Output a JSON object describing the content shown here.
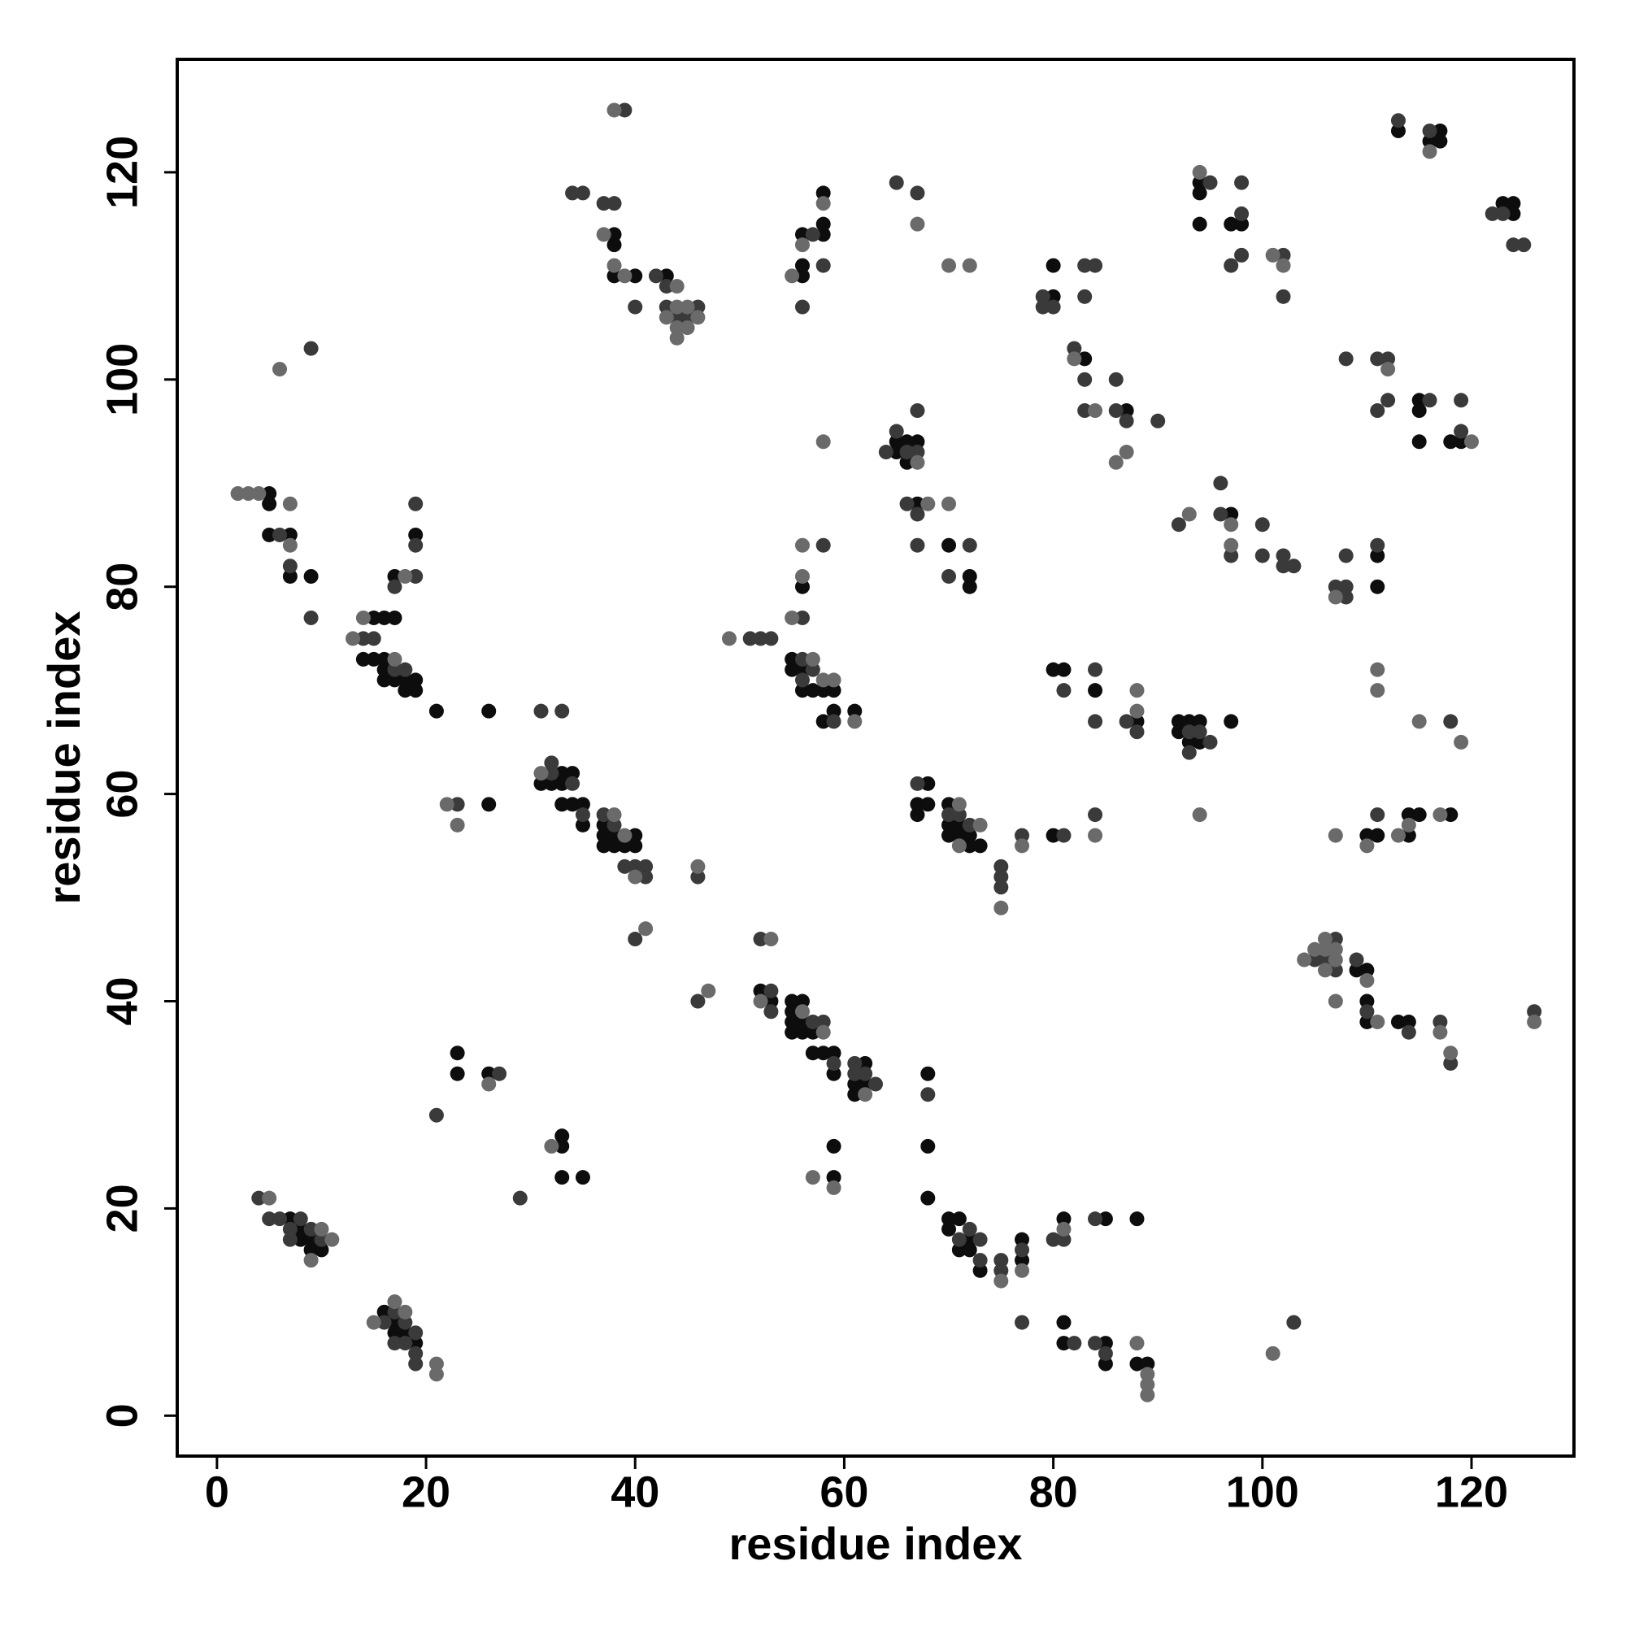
{
  "chart_data": {
    "type": "scatter",
    "xlabel": "residue index",
    "ylabel": "residue index",
    "xlim": [
      -3.8,
      129.8
    ],
    "ylim": [
      -3.9,
      130.9
    ],
    "xticks": [
      0,
      20,
      40,
      60,
      80,
      100,
      120
    ],
    "yticks": [
      0,
      20,
      40,
      60,
      80,
      100,
      120
    ],
    "grid": false,
    "series": [
      {
        "color": "#0d0d0d",
        "x": [
          7,
          8,
          8,
          9,
          9,
          10,
          16,
          17,
          17,
          18,
          19,
          23,
          23,
          26,
          33,
          33,
          33,
          35,
          26,
          21,
          26,
          31,
          32,
          33,
          33,
          33,
          34,
          34,
          35,
          35,
          37,
          37,
          37,
          38,
          38,
          39,
          40,
          40,
          38,
          38,
          38,
          40,
          43,
          5,
          5,
          5,
          7,
          7,
          9,
          15,
          16,
          17,
          14,
          15,
          16,
          16,
          16,
          17,
          18,
          18,
          19,
          19,
          17,
          19,
          55,
          55,
          56,
          56,
          56,
          57,
          58,
          59,
          58,
          59,
          61,
          56,
          56,
          56,
          58,
          58,
          58,
          65,
          65,
          66,
          66,
          67,
          67,
          70,
          72,
          72,
          68,
          67,
          67,
          68,
          70,
          70,
          70,
          71,
          71,
          72,
          72,
          73,
          80,
          80,
          81,
          84,
          88,
          92,
          92,
          93,
          93,
          94,
          94,
          97,
          52,
          53,
          55,
          55,
          55,
          55,
          56,
          56,
          56,
          57,
          57,
          58,
          59,
          59,
          61,
          61,
          62,
          62,
          59,
          59,
          68,
          68,
          68,
          70,
          70,
          71,
          71,
          72,
          72,
          73,
          77,
          77,
          81,
          85,
          88,
          81,
          81,
          85,
          85,
          88,
          89,
          80,
          80,
          83,
          87,
          97,
          94,
          94,
          94,
          97,
          98,
          111,
          111,
          115,
          115,
          115,
          118,
          119,
          113,
          116,
          117,
          117,
          123,
          124,
          124,
          110,
          111,
          114,
          114,
          115,
          118,
          109,
          110,
          110,
          110,
          113,
          114
        ],
        "values": [
          19,
          18,
          17,
          17,
          16,
          16,
          10,
          9,
          8,
          8,
          7,
          35,
          33,
          33,
          27,
          26,
          23,
          23,
          59,
          68,
          68,
          61,
          61,
          62,
          61,
          59,
          62,
          59,
          59,
          57,
          57,
          56,
          55,
          56,
          55,
          55,
          56,
          55,
          114,
          113,
          110,
          110,
          110,
          89,
          88,
          85,
          85,
          81,
          81,
          77,
          77,
          77,
          73,
          73,
          73,
          72,
          71,
          71,
          71,
          70,
          71,
          70,
          81,
          85,
          73,
          72,
          80,
          72,
          70,
          70,
          70,
          70,
          67,
          68,
          68,
          114,
          111,
          110,
          118,
          115,
          114,
          94,
          93,
          94,
          92,
          94,
          88,
          84,
          81,
          80,
          61,
          59,
          58,
          59,
          59,
          57,
          56,
          57,
          56,
          56,
          55,
          55,
          56,
          72,
          72,
          70,
          67,
          67,
          66,
          67,
          65,
          67,
          65,
          67,
          41,
          40,
          40,
          39,
          38,
          37,
          40,
          38,
          37,
          37,
          35,
          35,
          35,
          33,
          32,
          31,
          34,
          32,
          26,
          23,
          33,
          26,
          21,
          19,
          18,
          19,
          16,
          17,
          16,
          14,
          17,
          15,
          19,
          19,
          19,
          9,
          7,
          7,
          5,
          5,
          5,
          111,
          108,
          102,
          97,
          87,
          119,
          118,
          115,
          115,
          115,
          83,
          80,
          98,
          97,
          94,
          94,
          94,
          124,
          123,
          124,
          123,
          117,
          117,
          116,
          56,
          56,
          58,
          56,
          58,
          58,
          43,
          43,
          40,
          38,
          38,
          38
        ]
      },
      {
        "color": "#3a3a3a",
        "x": [
          4,
          5,
          6,
          7,
          7,
          8,
          9,
          10,
          16,
          17,
          17,
          18,
          18,
          19,
          19,
          19,
          21,
          27,
          29,
          23,
          31,
          33,
          32,
          32,
          34,
          35,
          37,
          38,
          39,
          40,
          41,
          41,
          40,
          46,
          46,
          39,
          34,
          35,
          37,
          38,
          40,
          42,
          43,
          43,
          44,
          45,
          46,
          6,
          7,
          9,
          9,
          14,
          15,
          17,
          18,
          17,
          19,
          19,
          19,
          51,
          52,
          53,
          56,
          58,
          56,
          56,
          57,
          59,
          57,
          56,
          58,
          64,
          65,
          66,
          67,
          67,
          66,
          67,
          67,
          65,
          67,
          70,
          72,
          67,
          70,
          71,
          72,
          75,
          75,
          75,
          77,
          81,
          81,
          84,
          84,
          84,
          87,
          88,
          93,
          93,
          94,
          95,
          52,
          53,
          53,
          57,
          58,
          59,
          61,
          61,
          62,
          63,
          68,
          71,
          72,
          73,
          73,
          75,
          75,
          77,
          77,
          80,
          81,
          84,
          82,
          84,
          85,
          103,
          79,
          79,
          80,
          83,
          83,
          84,
          82,
          83,
          83,
          86,
          86,
          87,
          90,
          92,
          96,
          96,
          97,
          100,
          100,
          102,
          102,
          103,
          95,
          98,
          98,
          97,
          98,
          102,
          102,
          107,
          108,
          108,
          108,
          111,
          108,
          111,
          111,
          112,
          112,
          116,
          119,
          119,
          113,
          116,
          122,
          123,
          124,
          125,
          118,
          111,
          105,
          106,
          107,
          107,
          109,
          110,
          114,
          117,
          118,
          126
        ],
        "values": [
          21,
          19,
          19,
          18,
          17,
          19,
          18,
          17,
          9,
          10,
          7,
          9,
          7,
          8,
          6,
          5,
          29,
          33,
          21,
          59,
          68,
          68,
          63,
          62,
          61,
          58,
          58,
          57,
          53,
          53,
          53,
          52,
          46,
          52,
          40,
          126,
          118,
          118,
          117,
          117,
          107,
          110,
          109,
          107,
          106,
          106,
          107,
          85,
          82,
          77,
          103,
          75,
          75,
          72,
          72,
          80,
          81,
          84,
          88,
          75,
          75,
          75,
          77,
          84,
          73,
          71,
          72,
          67,
          114,
          107,
          111,
          93,
          95,
          93,
          93,
          97,
          88,
          87,
          84,
          119,
          118,
          81,
          84,
          61,
          58,
          58,
          57,
          53,
          52,
          51,
          56,
          56,
          70,
          72,
          67,
          58,
          67,
          66,
          66,
          64,
          66,
          65,
          46,
          41,
          39,
          38,
          38,
          34,
          34,
          33,
          33,
          32,
          31,
          17,
          18,
          17,
          15,
          15,
          14,
          16,
          9,
          17,
          17,
          19,
          7,
          7,
          6,
          9,
          108,
          107,
          107,
          111,
          108,
          111,
          103,
          100,
          97,
          100,
          97,
          96,
          96,
          86,
          90,
          87,
          83,
          86,
          83,
          83,
          82,
          82,
          119,
          116,
          119,
          111,
          112,
          112,
          108,
          80,
          80,
          79,
          83,
          84,
          102,
          102,
          97,
          102,
          98,
          98,
          98,
          95,
          125,
          124,
          116,
          116,
          113,
          113,
          67,
          58,
          44,
          44,
          46,
          43,
          44,
          39,
          37,
          38,
          34,
          39
        ]
      },
      {
        "color": "#6a6a6a",
        "x": [
          5,
          9,
          10,
          11,
          15,
          17,
          18,
          21,
          21,
          26,
          32,
          22,
          23,
          31,
          38,
          39,
          40,
          41,
          46,
          47,
          38,
          37,
          38,
          39,
          44,
          43,
          44,
          44,
          45,
          45,
          46,
          44,
          2,
          3,
          4,
          7,
          7,
          6,
          13,
          14,
          17,
          18,
          49,
          55,
          56,
          56,
          57,
          58,
          59,
          61,
          56,
          55,
          58,
          58,
          67,
          68,
          67,
          70,
          72,
          70,
          71,
          71,
          73,
          75,
          77,
          84,
          88,
          88,
          94,
          53,
          52,
          56,
          58,
          62,
          57,
          59,
          75,
          77,
          81,
          88,
          89,
          89,
          89,
          101,
          82,
          84,
          86,
          87,
          93,
          97,
          97,
          94,
          101,
          102,
          107,
          112,
          120,
          116,
          111,
          111,
          115,
          119,
          107,
          110,
          113,
          114,
          117,
          104,
          105,
          106,
          106,
          106,
          107,
          107,
          107,
          110,
          111,
          117,
          118,
          126
        ],
        "values": [
          21,
          15,
          18,
          17,
          9,
          11,
          10,
          5,
          4,
          32,
          26,
          59,
          57,
          62,
          58,
          56,
          52,
          47,
          53,
          41,
          126,
          114,
          111,
          110,
          109,
          106,
          107,
          104,
          107,
          105,
          106,
          105,
          89,
          89,
          89,
          84,
          88,
          101,
          75,
          77,
          73,
          81,
          75,
          77,
          81,
          84,
          73,
          71,
          71,
          67,
          113,
          110,
          117,
          94,
          92,
          88,
          115,
          111,
          111,
          88,
          59,
          55,
          57,
          49,
          55,
          56,
          68,
          70,
          58,
          46,
          40,
          39,
          37,
          31,
          23,
          22,
          13,
          14,
          18,
          7,
          4,
          3,
          2,
          6,
          102,
          97,
          92,
          93,
          87,
          86,
          84,
          120,
          112,
          111,
          79,
          101,
          94,
          122,
          72,
          70,
          67,
          65,
          56,
          55,
          56,
          57,
          58,
          44,
          45,
          46,
          45,
          43,
          45,
          44,
          40,
          42,
          38,
          37,
          35,
          38
        ]
      }
    ]
  }
}
